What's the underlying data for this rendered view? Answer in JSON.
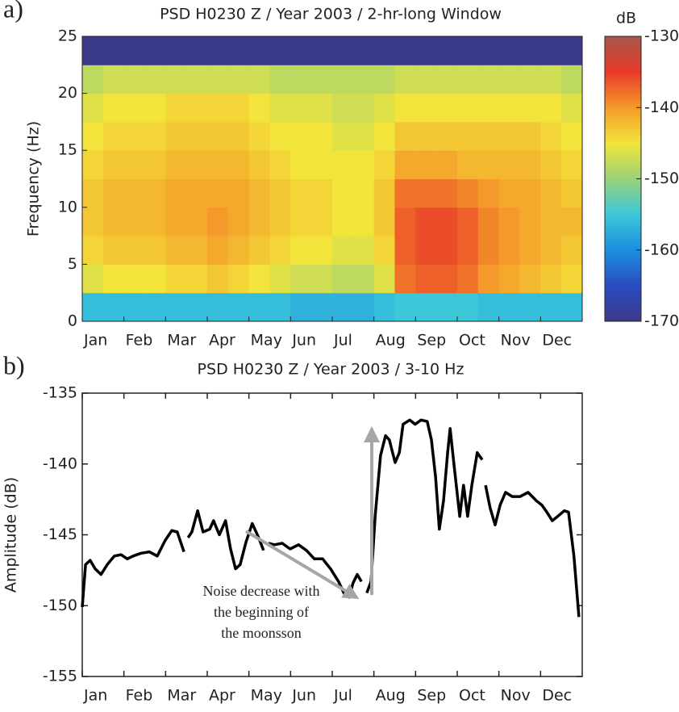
{
  "chart_data": [
    {
      "type": "heatmap",
      "panel_label": "a)",
      "title": "PSD H0230 Z / Year 2003 / 2-hr-long Window",
      "ylabel": "Frequency (Hz)",
      "categories": [
        "Jan",
        "Feb",
        "Mar",
        "Apr",
        "May",
        "Jun",
        "Jul",
        "Aug",
        "Sep",
        "Oct",
        "Nov",
        "Dec"
      ],
      "y_bins": [
        0,
        2.5,
        5,
        7.5,
        10,
        12.5,
        15,
        17.5,
        20,
        22.5,
        25
      ],
      "ylim": [
        0,
        25
      ],
      "yticks": [
        0,
        5,
        10,
        15,
        20,
        25
      ],
      "z": [
        [
          -156,
          -156,
          -156,
          -156,
          -156,
          -156,
          -156,
          -156,
          -156,
          -156,
          -157,
          -157,
          -157,
          -157,
          -156,
          -155,
          -155,
          -155,
          -155,
          -156,
          -156,
          -156,
          -156,
          -156
        ],
        [
          -146,
          -145,
          -145,
          -145,
          -144,
          -144,
          -143,
          -144,
          -145,
          -146,
          -147,
          -147,
          -148,
          -148,
          -146,
          -138,
          -137,
          -137,
          -138,
          -140,
          -141,
          -142,
          -143,
          -144
        ],
        [
          -144,
          -143,
          -143,
          -143,
          -142,
          -142,
          -141,
          -142,
          -143,
          -144,
          -145,
          -145,
          -146,
          -146,
          -144,
          -137,
          -136,
          -136,
          -137,
          -139,
          -140,
          -141,
          -142,
          -143
        ],
        [
          -143,
          -142,
          -142,
          -142,
          -141,
          -141,
          -140,
          -141,
          -142,
          -143,
          -144,
          -144,
          -145,
          -145,
          -143,
          -137,
          -136,
          -136,
          -137,
          -139,
          -140,
          -141,
          -142,
          -142
        ],
        [
          -143,
          -142,
          -142,
          -142,
          -141,
          -141,
          -141,
          -141,
          -142,
          -143,
          -144,
          -144,
          -145,
          -145,
          -143,
          -138,
          -138,
          -138,
          -139,
          -140,
          -141,
          -141,
          -142,
          -143
        ],
        [
          -144,
          -143,
          -143,
          -143,
          -142,
          -142,
          -142,
          -142,
          -143,
          -144,
          -145,
          -145,
          -145,
          -145,
          -144,
          -141,
          -141,
          -141,
          -142,
          -142,
          -142,
          -142,
          -143,
          -144
        ],
        [
          -145,
          -144,
          -144,
          -144,
          -143,
          -143,
          -143,
          -143,
          -144,
          -145,
          -145,
          -145,
          -146,
          -146,
          -145,
          -143,
          -143,
          -143,
          -143,
          -143,
          -143,
          -143,
          -144,
          -145
        ],
        [
          -146,
          -145,
          -145,
          -145,
          -144,
          -144,
          -144,
          -144,
          -145,
          -146,
          -146,
          -146,
          -147,
          -147,
          -146,
          -145,
          -145,
          -145,
          -145,
          -145,
          -145,
          -145,
          -145,
          -146
        ],
        [
          -148,
          -147,
          -147,
          -147,
          -147,
          -147,
          -147,
          -147,
          -147,
          -148,
          -148,
          -148,
          -148,
          -148,
          -148,
          -147,
          -147,
          -147,
          -147,
          -147,
          -147,
          -147,
          -147,
          -148
        ],
        [
          -170,
          -170,
          -170,
          -170,
          -170,
          -170,
          -170,
          -170,
          -170,
          -170,
          -170,
          -170,
          -170,
          -170,
          -170,
          -170,
          -170,
          -170,
          -170,
          -170,
          -170,
          -170,
          -170,
          -170
        ]
      ],
      "colorbar": {
        "label": "dB",
        "clim": [
          -170,
          -130
        ],
        "ticks": [
          -130,
          -140,
          -150,
          -160,
          -170
        ],
        "colormap": [
          "#3c3a8a",
          "#2a4cc0",
          "#1b8fe0",
          "#3cc8d8",
          "#9ad27a",
          "#f2e43a",
          "#f59a2a",
          "#e8392a",
          "#a5584a"
        ]
      }
    },
    {
      "type": "line",
      "panel_label": "b)",
      "title": "PSD H0230 Z / Year 2003 / 3-10 Hz",
      "ylabel": "Amplitude (dB)",
      "categories": [
        "Jan",
        "Feb",
        "Mar",
        "Apr",
        "May",
        "Jun",
        "Jul",
        "Aug",
        "Sep",
        "Oct",
        "Nov",
        "Dec"
      ],
      "xlim": [
        0,
        12
      ],
      "ylim": [
        -155,
        -135
      ],
      "yticks": [
        -135,
        -140,
        -145,
        -150,
        -155
      ],
      "x": [
        0.0,
        0.08,
        0.19,
        0.31,
        0.45,
        0.6,
        0.77,
        0.93,
        1.08,
        1.22,
        1.41,
        1.61,
        1.8,
        1.99,
        2.15,
        2.28,
        2.44,
        null,
        2.54,
        2.63,
        2.77,
        2.9,
        3.06,
        3.15,
        3.29,
        3.44,
        3.56,
        3.68,
        3.79,
        3.93,
        4.08,
        4.22,
        4.35,
        null,
        4.47,
        4.61,
        4.8,
        4.99,
        5.19,
        5.38,
        5.57,
        5.77,
        5.96,
        6.15,
        6.31,
        6.41,
        6.5,
        6.6,
        6.7,
        null,
        6.83,
        6.93,
        7.03,
        7.16,
        7.28,
        7.37,
        7.51,
        7.61,
        7.7,
        7.86,
        7.99,
        8.13,
        8.28,
        8.38,
        8.48,
        8.57,
        8.67,
        8.77,
        8.83,
        8.92,
        9.06,
        9.15,
        9.25,
        9.35,
        9.48,
        9.6,
        null,
        9.68,
        9.79,
        9.91,
        10.03,
        10.16,
        10.32,
        10.51,
        10.7,
        10.9,
        11.03,
        11.15,
        11.28,
        11.41,
        11.57,
        11.67,
        11.8,
        11.92
      ],
      "series": [
        {
          "color": "#000000",
          "values": [
            -150.1,
            -147.1,
            -146.8,
            -147.4,
            -147.8,
            -147.1,
            -146.5,
            -146.4,
            -146.7,
            -146.5,
            -146.3,
            -146.2,
            -146.5,
            -145.4,
            -144.7,
            -144.8,
            -146.2,
            null,
            -145.2,
            -144.8,
            -143.3,
            -144.8,
            -144.6,
            -144.0,
            -145.0,
            -144.0,
            -146.0,
            -147.4,
            -147.1,
            -145.5,
            -144.2,
            -145.1,
            -146.1,
            null,
            -145.6,
            -145.7,
            -145.6,
            -146.0,
            -145.7,
            -146.1,
            -146.7,
            -146.7,
            -147.4,
            -148.3,
            -149.3,
            -149.4,
            -148.4,
            -147.8,
            -148.3,
            null,
            -149.1,
            -148.3,
            -143.7,
            -139.4,
            -138.0,
            -138.3,
            -139.9,
            -139.2,
            -137.2,
            -136.9,
            -137.2,
            -136.9,
            -137.0,
            -138.3,
            -140.9,
            -144.6,
            -142.6,
            -139.2,
            -137.5,
            -140.0,
            -143.7,
            -141.5,
            -143.7,
            -141.5,
            -139.2,
            -139.7,
            null,
            -141.5,
            -143.1,
            -144.3,
            -142.9,
            -142.0,
            -142.3,
            -142.3,
            -142.0,
            -142.6,
            -142.9,
            -143.4,
            -144.0,
            -143.7,
            -143.3,
            -143.4,
            -146.5,
            -150.8
          ]
        }
      ],
      "annotation": [
        "Noise decrease with",
        "the beginning of",
        "the moonsson"
      ]
    }
  ]
}
